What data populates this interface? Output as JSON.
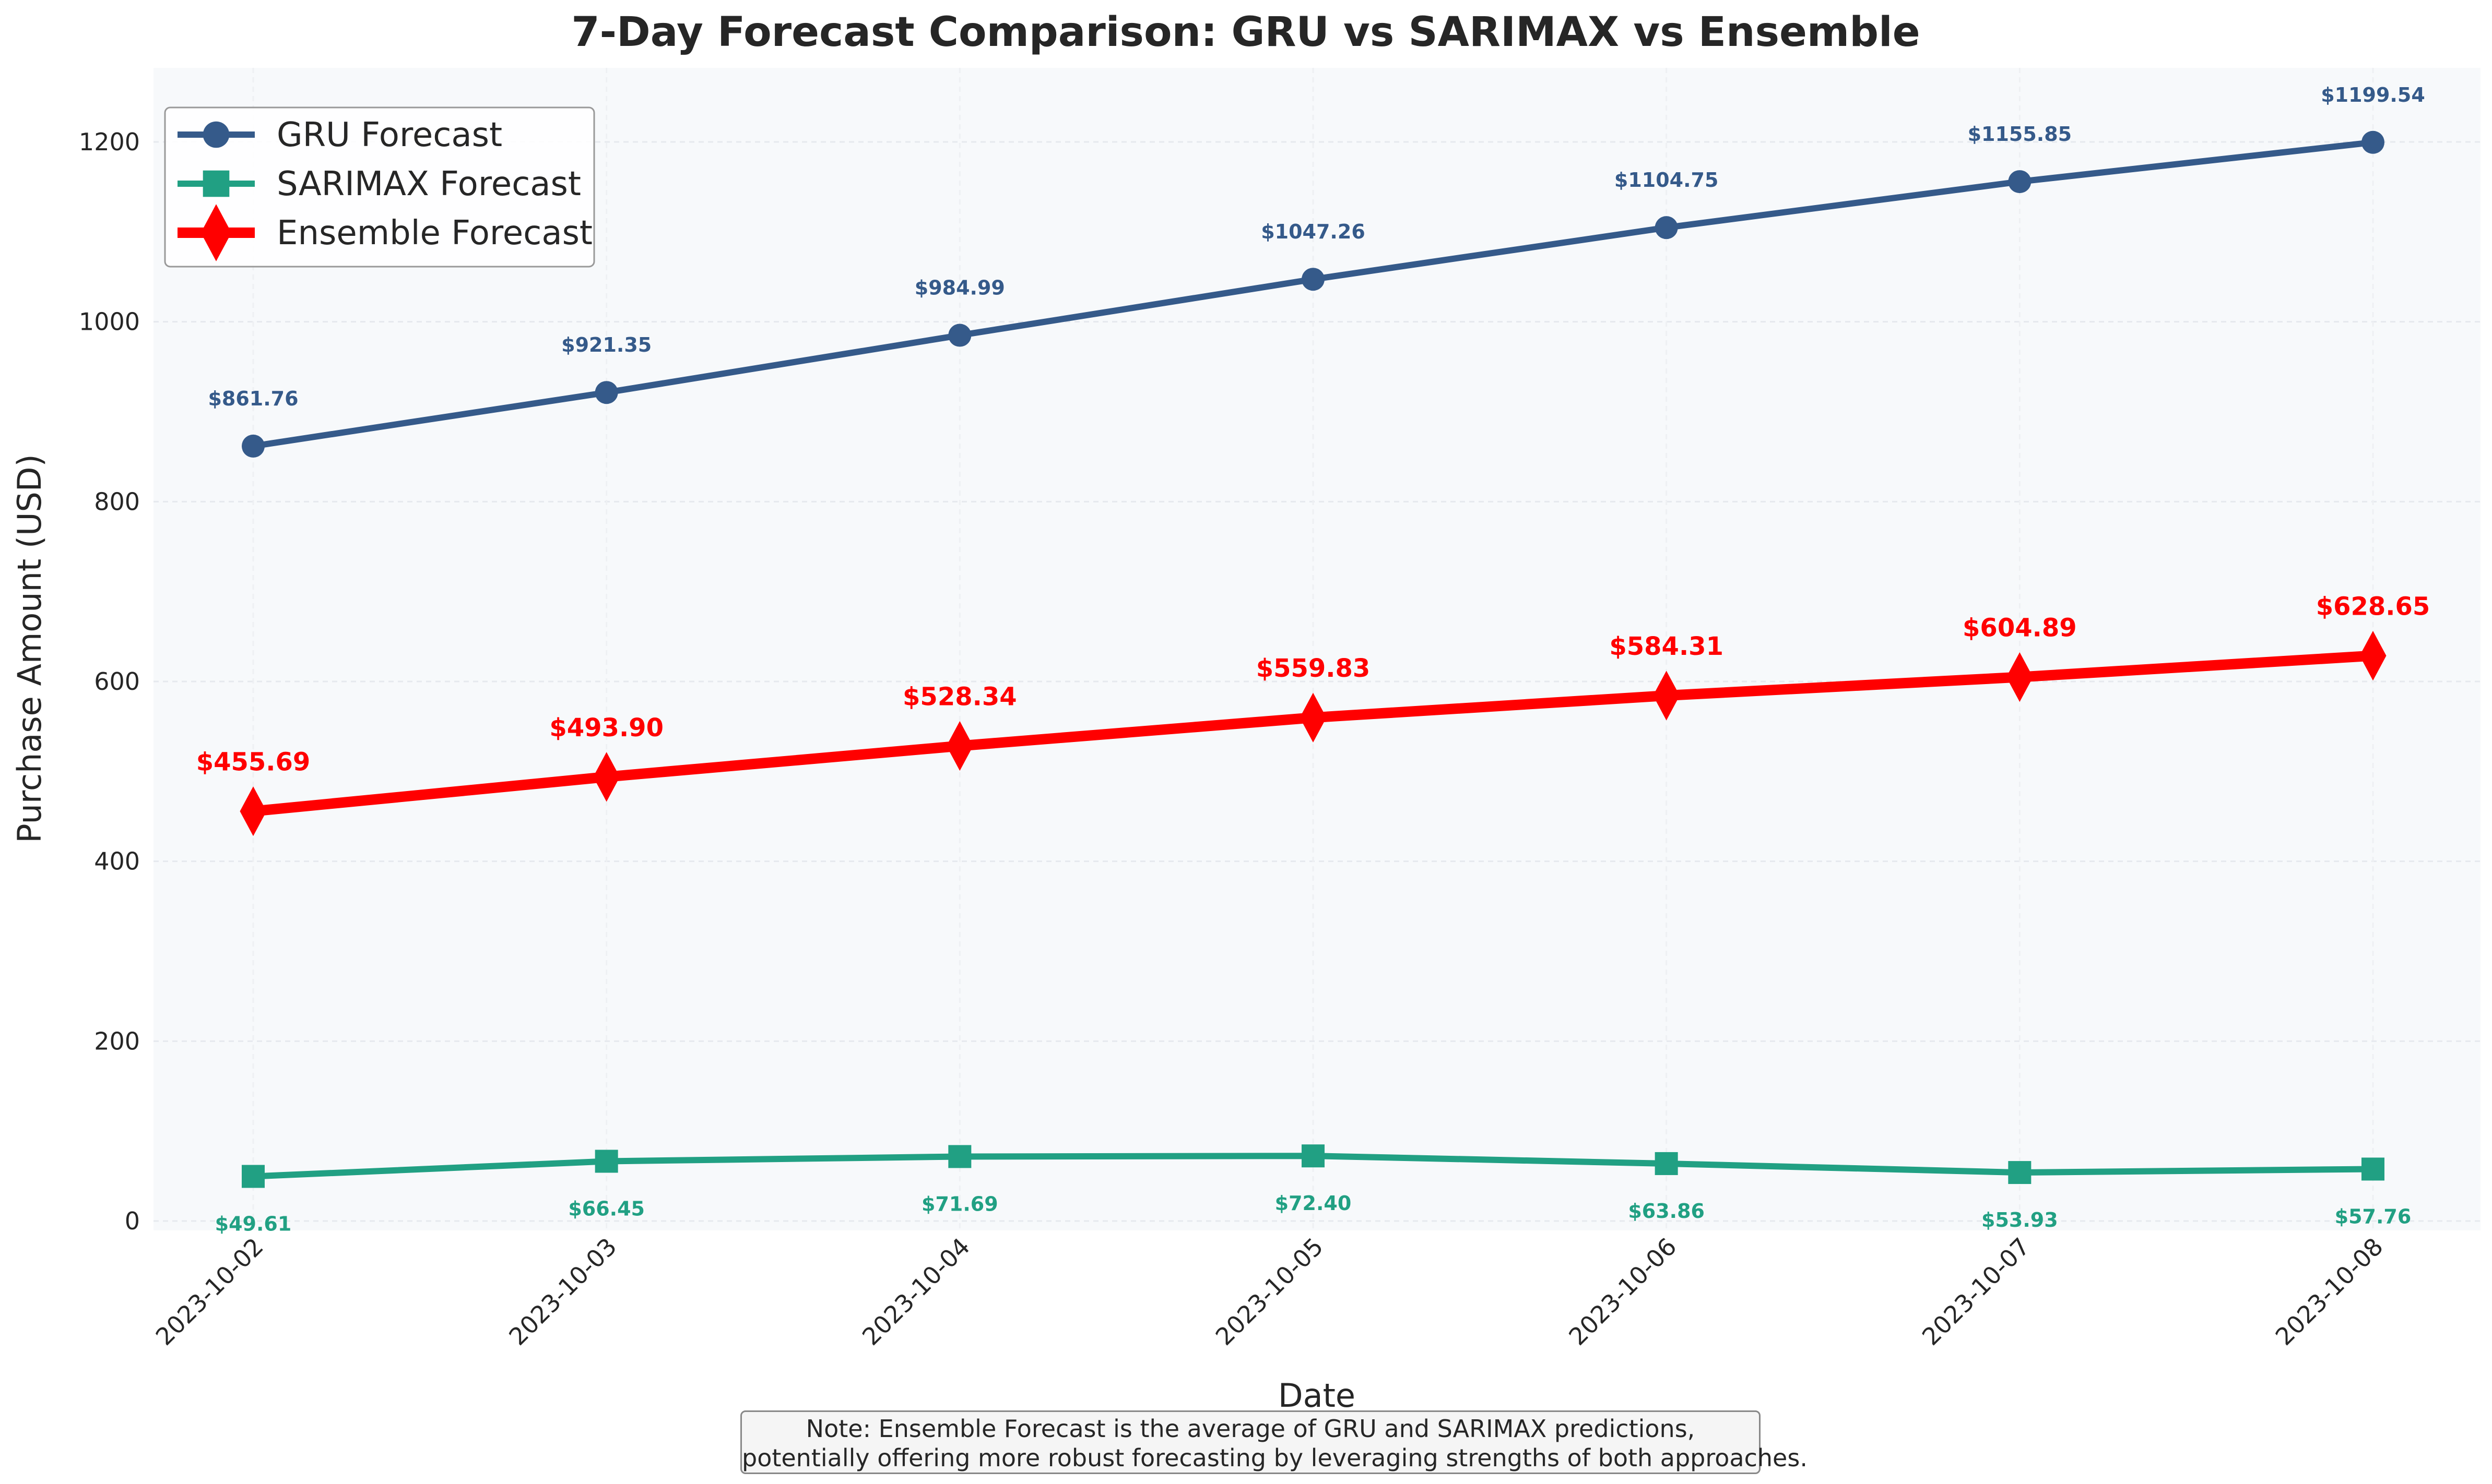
{
  "chart_data": {
    "type": "line",
    "title": "7-Day Forecast Comparison: GRU vs SARIMAX vs Ensemble",
    "xlabel": "Date",
    "ylabel": "Purchase Amount (USD)",
    "categories": [
      "2023-10-02",
      "2023-10-03",
      "2023-10-04",
      "2023-10-05",
      "2023-10-06",
      "2023-10-07",
      "2023-10-08"
    ],
    "ylim": [
      0,
      1260
    ],
    "yticks": [
      0,
      200,
      400,
      600,
      800,
      1000,
      1200
    ],
    "grid": true,
    "legend_position": "top-left",
    "series": [
      {
        "name": "GRU Forecast",
        "color": "#355a8a",
        "marker": "circle",
        "values": [
          861.76,
          921.35,
          984.99,
          1047.26,
          1104.75,
          1155.85,
          1199.54
        ],
        "labels": [
          "$861.76",
          "$921.35",
          "$984.99",
          "$1047.26",
          "$1104.75",
          "$1155.85",
          "$1199.54"
        ]
      },
      {
        "name": "SARIMAX Forecast",
        "color": "#21a083",
        "marker": "square",
        "values": [
          49.61,
          66.45,
          71.69,
          72.4,
          63.86,
          53.93,
          57.76
        ],
        "labels": [
          "$49.61",
          "$66.45",
          "$71.69",
          "$72.40",
          "$63.86",
          "$53.93",
          "$57.76"
        ]
      },
      {
        "name": "Ensemble Forecast",
        "color": "#ff0000",
        "marker": "diamond",
        "values": [
          455.69,
          493.9,
          528.34,
          559.83,
          584.31,
          604.89,
          628.65
        ],
        "labels": [
          "$455.69",
          "$493.90",
          "$528.34",
          "$559.83",
          "$584.31",
          "$604.89",
          "$628.65"
        ]
      }
    ]
  },
  "note": {
    "line1": "Note: Ensemble Forecast is the average of GRU and SARIMAX predictions,",
    "line2": "potentially offering more robust forecasting by leveraging strengths of both approaches."
  }
}
